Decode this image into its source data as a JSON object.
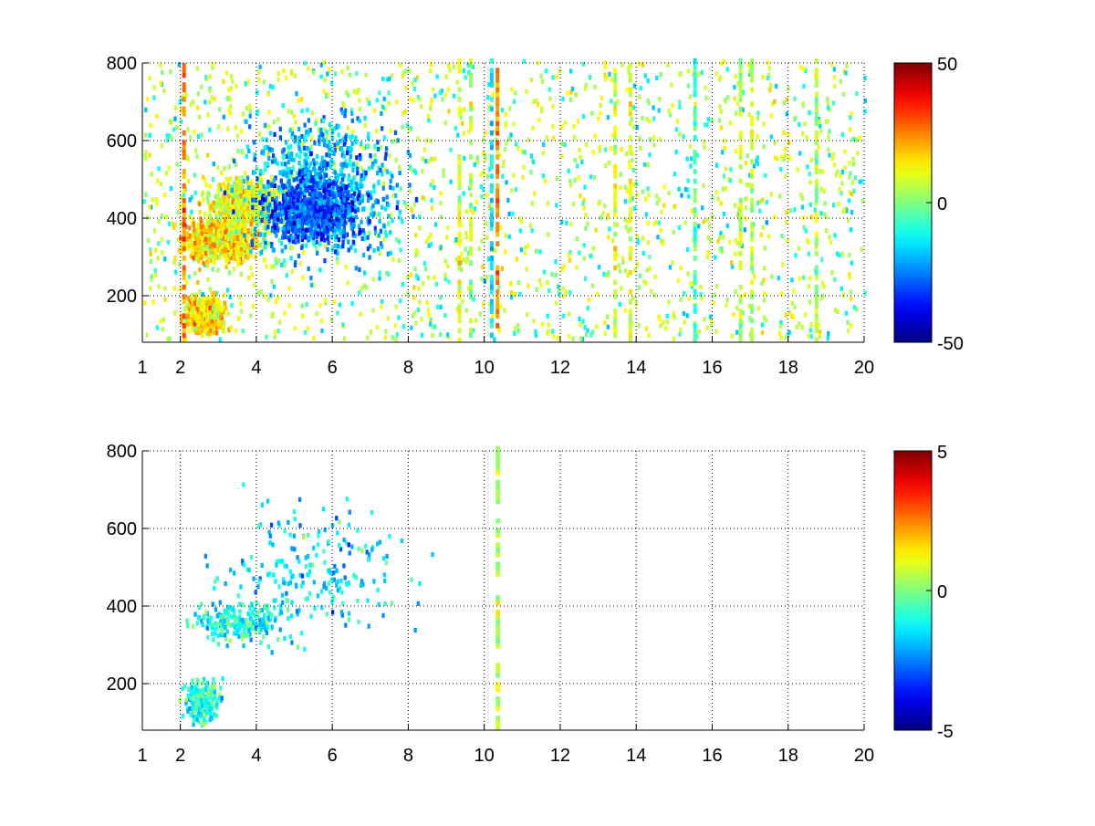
{
  "chart_data": [
    {
      "type": "heatmap",
      "title": "",
      "xlabel": "",
      "ylabel": "",
      "xlim": [
        1,
        20
      ],
      "ylim": [
        80,
        800
      ],
      "grid": true,
      "xticks": [
        1,
        2,
        4,
        6,
        8,
        10,
        12,
        14,
        16,
        18,
        20
      ],
      "xtick_labels": [
        "1",
        "2",
        "4",
        "6",
        "8",
        "10",
        "12",
        "14",
        "16",
        "18",
        "20"
      ],
      "yticks": [
        200,
        400,
        600,
        800
      ],
      "ytick_labels": [
        "200",
        "400",
        "600",
        "800"
      ],
      "colorbar": {
        "colormap": "jet",
        "clim": [
          -50,
          50
        ],
        "ticks": [
          -50,
          0,
          50
        ],
        "tick_labels": [
          "-50",
          "0",
          "50"
        ]
      },
      "coverage": "dense",
      "clusters": [
        {
          "x": [
            2.2,
            3.0
          ],
          "y": [
            110,
            180
          ],
          "value": 15
        },
        {
          "x": [
            2.2,
            3.8
          ],
          "y": [
            290,
            380
          ],
          "value": 15
        },
        {
          "x": [
            3.0,
            4.5
          ],
          "y": [
            380,
            480
          ],
          "value": 10
        },
        {
          "x": [
            4.0,
            7.5
          ],
          "y": [
            330,
            620
          ],
          "value": -20
        },
        {
          "x": [
            4.5,
            6.5
          ],
          "y": [
            350,
            480
          ],
          "value": -30
        }
      ],
      "stripes": [
        {
          "x": 2.05,
          "value": 25
        },
        {
          "x": 9.3,
          "value": 10
        },
        {
          "x": 9.6,
          "value": 5
        },
        {
          "x": 10.3,
          "value": 25
        },
        {
          "x": 10.15,
          "value": -15
        },
        {
          "x": 13.4,
          "value": 10
        },
        {
          "x": 13.8,
          "value": 10
        },
        {
          "x": 15.5,
          "value": -5
        },
        {
          "x": 16.7,
          "value": 5
        },
        {
          "x": 17.0,
          "value": 5
        },
        {
          "x": 18.7,
          "value": 5
        }
      ]
    },
    {
      "type": "heatmap",
      "title": "",
      "xlabel": "",
      "ylabel": "",
      "xlim": [
        1,
        20
      ],
      "ylim": [
        80,
        800
      ],
      "grid": true,
      "xticks": [
        1,
        2,
        4,
        6,
        8,
        10,
        12,
        14,
        16,
        18,
        20
      ],
      "xtick_labels": [
        "1",
        "2",
        "4",
        "6",
        "8",
        "10",
        "12",
        "14",
        "16",
        "18",
        "20"
      ],
      "yticks": [
        200,
        400,
        600,
        800
      ],
      "ytick_labels": [
        "200",
        "400",
        "600",
        "800"
      ],
      "colorbar": {
        "colormap": "jet",
        "clim": [
          -5,
          5
        ],
        "ticks": [
          -5,
          0,
          5
        ],
        "tick_labels": [
          "-5",
          "0",
          "5"
        ]
      },
      "coverage": "sparse",
      "clusters": [
        {
          "x": [
            2.2,
            2.9
          ],
          "y": [
            110,
            190
          ],
          "value": -1
        },
        {
          "x": [
            2.5,
            4.5
          ],
          "y": [
            310,
            400
          ],
          "value": -1
        },
        {
          "x": [
            3.5,
            7.5
          ],
          "y": [
            340,
            620
          ],
          "value": -1.5
        }
      ],
      "stripes": [
        {
          "x": 10.3,
          "value": 0.5
        }
      ]
    }
  ]
}
